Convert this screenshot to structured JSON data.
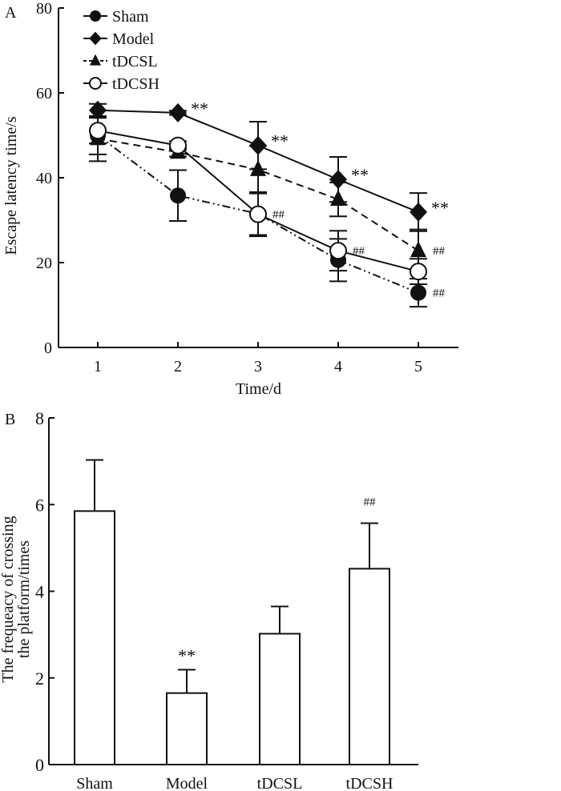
{
  "chart_data": [
    {
      "panel_label": "A",
      "type": "line",
      "xlabel": "Time/d",
      "ylabel": "Escape latency time/s",
      "x": [
        1,
        2,
        3,
        4,
        5
      ],
      "xticks": [
        "1",
        "2",
        "3",
        "4",
        "5"
      ],
      "yticks": [
        "0",
        "20",
        "40",
        "60",
        "80"
      ],
      "ylim": [
        0,
        80
      ],
      "xlim": [
        0.5,
        5.5
      ],
      "legend_position": "top-left",
      "series": [
        {
          "name": "Sham",
          "marker": "filled-circle",
          "line": "dash-dot-dot",
          "values": [
            50,
            35.8,
            31.5,
            20.6,
            12.9
          ],
          "errors": [
            4.5,
            6,
            5,
            5,
            3.3
          ]
        },
        {
          "name": "Model",
          "marker": "filled-diamond",
          "line": "solid",
          "values": [
            55.9,
            55.3,
            47.6,
            39.6,
            31.9
          ],
          "errors": [
            1.5,
            0.5,
            5.6,
            5.3,
            4.5
          ]
        },
        {
          "name": "tDCSL",
          "marker": "filled-triangle",
          "line": "dashed",
          "values": [
            49.2,
            46,
            41.9,
            34.9,
            22.8
          ],
          "errors": [
            5.3,
            1,
            5.6,
            4,
            5
          ]
        },
        {
          "name": "tDCSH",
          "marker": "open-circle",
          "line": "solid",
          "values": [
            51.1,
            47.6,
            31.4,
            22.8,
            17.9
          ],
          "errors": [
            3,
            1,
            5.2,
            4.7,
            3
          ]
        }
      ],
      "annotations": [
        {
          "text": "**",
          "x": 2,
          "y": 55.3,
          "series": "Model"
        },
        {
          "text": "**",
          "x": 3,
          "y": 47.6,
          "series": "Model"
        },
        {
          "text": "**",
          "x": 4,
          "y": 39.6,
          "series": "Model"
        },
        {
          "text": "**",
          "x": 5,
          "y": 31.9,
          "series": "Model"
        },
        {
          "text": "##",
          "x": 3,
          "y": 31.4,
          "series": "tDCSH"
        },
        {
          "text": "##",
          "x": 4,
          "y": 22.8,
          "series": "tDCSH"
        },
        {
          "text": "##",
          "x": 5,
          "y": 22.8,
          "series": "tDCSL"
        },
        {
          "text": "##",
          "x": 5,
          "y": 12.9,
          "series": "Sham"
        }
      ]
    },
    {
      "panel_label": "B",
      "type": "bar",
      "xlabel": "",
      "ylabel_lines": [
        "The frequeacy of crossing",
        "the platform/times"
      ],
      "categories": [
        "Sham",
        "Model",
        "tDCSL",
        "tDCSH"
      ],
      "values": [
        5.85,
        1.65,
        3.02,
        4.52
      ],
      "errors": [
        1.18,
        0.54,
        0.63,
        1.05
      ],
      "yticks": [
        "0",
        "2",
        "4",
        "6",
        "8"
      ],
      "ylim": [
        0,
        8
      ],
      "annotations": [
        "",
        "**",
        "",
        "##"
      ]
    }
  ]
}
